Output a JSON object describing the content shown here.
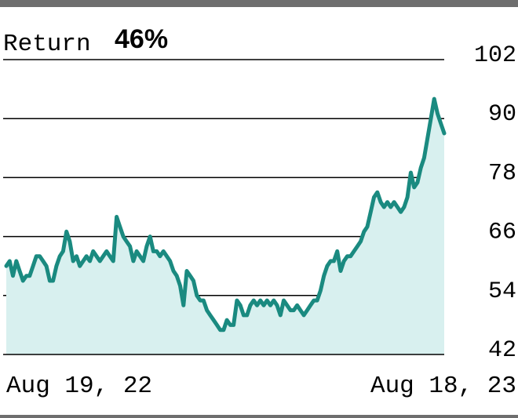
{
  "chart_data": {
    "type": "area",
    "title_label": "Return",
    "title_value": "46%",
    "x_start_label": "Aug 19, 22",
    "x_end_label": "Aug 18, 23",
    "y_ticks": [
      102,
      90,
      78,
      66,
      54,
      42
    ],
    "ylim": [
      42,
      102
    ],
    "grid": true,
    "line_color": "#1a8a80",
    "fill_color": "#d8f0ef",
    "series": [
      {
        "values": [
          60,
          61,
          58,
          61,
          59,
          57,
          58,
          58,
          60,
          62,
          62,
          61,
          60,
          57,
          57,
          60,
          62,
          63,
          67,
          65,
          61,
          62,
          60,
          61,
          62,
          61,
          63,
          62,
          61,
          62,
          63,
          62,
          61,
          70,
          68,
          66,
          65,
          64,
          61,
          63,
          62,
          61,
          64,
          66,
          63,
          63,
          62,
          63,
          62,
          61,
          59,
          58,
          56,
          52,
          59,
          58,
          57,
          54,
          53,
          53,
          51,
          50,
          49,
          48,
          47,
          47,
          49,
          48,
          48,
          53,
          52,
          50,
          50,
          52,
          53,
          52,
          53,
          52,
          53,
          52,
          53,
          52,
          50,
          53,
          52,
          51,
          51,
          52,
          51,
          50,
          51,
          52,
          53,
          53,
          55,
          58,
          60,
          61,
          61,
          63,
          59,
          61,
          62,
          62,
          63,
          64,
          65,
          67,
          68,
          71,
          74,
          75,
          73,
          72,
          73,
          72,
          73,
          72,
          71,
          72,
          74,
          79,
          76,
          77,
          80,
          82,
          86,
          90,
          94,
          91,
          89,
          87
        ],
        "x_start": "Aug 19, 22",
        "x_end": "Aug 18, 23"
      }
    ]
  }
}
